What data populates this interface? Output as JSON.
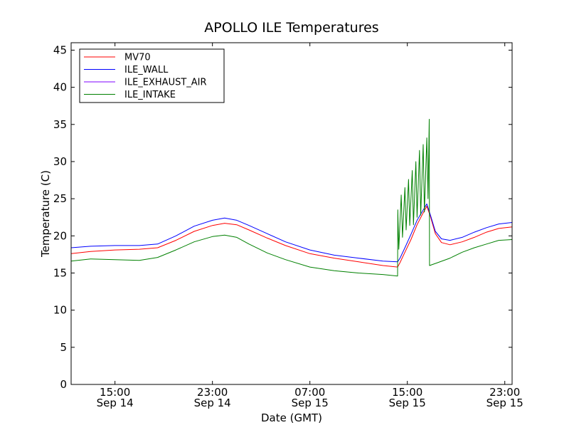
{
  "chart_data": {
    "type": "line",
    "title": "APOLLO ILE Temperatures",
    "xlabel": "Date (GMT)",
    "ylabel": "Temperature (C)",
    "x_axis": {
      "unit": "hours since 2014-09-14 00:00 GMT",
      "range": [
        11.4,
        47.6
      ],
      "ticks": [
        {
          "value": 15,
          "time": "15:00",
          "date": "Sep 14"
        },
        {
          "value": 23,
          "time": "23:00",
          "date": "Sep 14"
        },
        {
          "value": 31,
          "time": "07:00",
          "date": "Sep 15"
        },
        {
          "value": 39,
          "time": "15:00",
          "date": "Sep 15"
        },
        {
          "value": 47,
          "time": "23:00",
          "date": "Sep 15"
        }
      ]
    },
    "y_axis": {
      "range": [
        0,
        46
      ],
      "ticks": [
        0,
        5,
        10,
        15,
        20,
        25,
        30,
        35,
        40,
        45
      ]
    },
    "grid": false,
    "legend_position": "top-left",
    "series": [
      {
        "name": "MV70",
        "color": "#ff0000",
        "points": [
          [
            11.4,
            17.6
          ],
          [
            13,
            17.9
          ],
          [
            15,
            18.1
          ],
          [
            17,
            18.2
          ],
          [
            18.5,
            18.4
          ],
          [
            20,
            19.4
          ],
          [
            21.5,
            20.6
          ],
          [
            23,
            21.4
          ],
          [
            24,
            21.7
          ],
          [
            25,
            21.5
          ],
          [
            26,
            20.8
          ],
          [
            27.5,
            19.7
          ],
          [
            29,
            18.7
          ],
          [
            31,
            17.6
          ],
          [
            33,
            17.0
          ],
          [
            35,
            16.5
          ],
          [
            37,
            16.0
          ],
          [
            38.2,
            15.8
          ],
          [
            38.4,
            16.4
          ],
          [
            38.8,
            17.8
          ],
          [
            39.3,
            19.5
          ],
          [
            39.8,
            21.5
          ],
          [
            40.2,
            22.8
          ],
          [
            40.6,
            24.0
          ],
          [
            40.9,
            22.6
          ],
          [
            41.3,
            20.3
          ],
          [
            41.8,
            19.1
          ],
          [
            42.5,
            18.8
          ],
          [
            43.5,
            19.2
          ],
          [
            44.5,
            19.8
          ],
          [
            45.5,
            20.5
          ],
          [
            46.5,
            21.0
          ],
          [
            47.6,
            21.2
          ]
        ]
      },
      {
        "name": "ILE_WALL",
        "color": "#0000ff",
        "points": [
          [
            11.4,
            18.4
          ],
          [
            13,
            18.6
          ],
          [
            15,
            18.7
          ],
          [
            17,
            18.7
          ],
          [
            18.5,
            18.9
          ],
          [
            20,
            20.0
          ],
          [
            21.5,
            21.3
          ],
          [
            23,
            22.1
          ],
          [
            24,
            22.4
          ],
          [
            25,
            22.1
          ],
          [
            26,
            21.4
          ],
          [
            27.5,
            20.3
          ],
          [
            29,
            19.2
          ],
          [
            31,
            18.1
          ],
          [
            33,
            17.4
          ],
          [
            35,
            17.0
          ],
          [
            37,
            16.6
          ],
          [
            38.2,
            16.5
          ],
          [
            38.4,
            17.0
          ],
          [
            38.8,
            18.4
          ],
          [
            39.3,
            20.2
          ],
          [
            39.8,
            22.1
          ],
          [
            40.2,
            23.2
          ],
          [
            40.6,
            24.3
          ],
          [
            40.9,
            22.8
          ],
          [
            41.3,
            20.6
          ],
          [
            41.8,
            19.6
          ],
          [
            42.5,
            19.4
          ],
          [
            43.5,
            19.8
          ],
          [
            44.5,
            20.5
          ],
          [
            45.5,
            21.1
          ],
          [
            46.5,
            21.6
          ],
          [
            47.6,
            21.8
          ]
        ]
      },
      {
        "name": "ILE_EXHAUST_AIR",
        "color": "#7f00ff",
        "points": []
      },
      {
        "name": "ILE_INTAKE",
        "color": "#008000",
        "points": [
          [
            11.4,
            16.6
          ],
          [
            13,
            16.9
          ],
          [
            15,
            16.8
          ],
          [
            17,
            16.7
          ],
          [
            18.5,
            17.1
          ],
          [
            20,
            18.1
          ],
          [
            21.5,
            19.2
          ],
          [
            23,
            19.9
          ],
          [
            24,
            20.1
          ],
          [
            25,
            19.8
          ],
          [
            26,
            18.9
          ],
          [
            27.5,
            17.7
          ],
          [
            29,
            16.8
          ],
          [
            31,
            15.8
          ],
          [
            33,
            15.3
          ],
          [
            35,
            15.0
          ],
          [
            37,
            14.8
          ],
          [
            38.2,
            14.6
          ],
          [
            38.22,
            23.5
          ],
          [
            38.3,
            18.2
          ],
          [
            38.5,
            25.5
          ],
          [
            38.6,
            19.8
          ],
          [
            38.8,
            26.5
          ],
          [
            38.9,
            20.8
          ],
          [
            39.1,
            27.6
          ],
          [
            39.2,
            21.4
          ],
          [
            39.4,
            28.8
          ],
          [
            39.5,
            21.5
          ],
          [
            39.7,
            30.0
          ],
          [
            39.8,
            22.5
          ],
          [
            40.0,
            31.5
          ],
          [
            40.1,
            22.8
          ],
          [
            40.3,
            32.3
          ],
          [
            40.4,
            23.2
          ],
          [
            40.6,
            33.2
          ],
          [
            40.7,
            25.0
          ],
          [
            40.8,
            35.7
          ],
          [
            40.82,
            16.0
          ],
          [
            41.5,
            16.4
          ],
          [
            42.5,
            17.0
          ],
          [
            43.5,
            17.8
          ],
          [
            44.5,
            18.4
          ],
          [
            45.5,
            18.9
          ],
          [
            46.5,
            19.4
          ],
          [
            47.6,
            19.5
          ]
        ]
      }
    ]
  }
}
